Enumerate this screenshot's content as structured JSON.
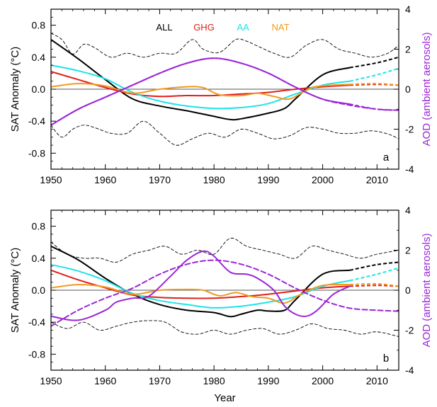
{
  "chart_data": [
    {
      "type": "line",
      "panel_label": "a",
      "x_ticks": [
        1950,
        1960,
        1970,
        1980,
        1990,
        2000,
        2010
      ],
      "xlim": [
        1950,
        2014
      ],
      "ylim": [
        -1.0,
        1.0
      ],
      "y_ticks": [
        -0.8,
        -0.4,
        0.0,
        0.4,
        0.8
      ],
      "y_tick_labels": [
        "-0.8",
        "-0.4",
        "0.0",
        "0.4",
        "0.8"
      ],
      "ylabel": "SAT Anomaly (°C)",
      "y2lim": [
        -4,
        4
      ],
      "y2_ticks": [
        -4,
        -2,
        0,
        2,
        4
      ],
      "y2label": "AOD (ambient aerosols)",
      "legend": [
        "ALL",
        "GHG",
        "AA",
        "NAT"
      ],
      "legend_position": "top-center",
      "zero_line": true,
      "series": [
        {
          "name": "ALL",
          "color": "#000000",
          "x": [
            1950,
            1955,
            1960,
            1965,
            1970,
            1975,
            1980,
            1983,
            1985,
            1990,
            1993,
            1995,
            2000,
            2005
          ],
          "y": [
            0.62,
            0.38,
            0.12,
            -0.12,
            -0.21,
            -0.27,
            -0.34,
            -0.38,
            -0.37,
            -0.3,
            -0.24,
            -0.12,
            0.18,
            0.27
          ],
          "x_ext": [
            2005,
            2010,
            2014
          ],
          "y_ext": [
            0.27,
            0.33,
            0.4
          ]
        },
        {
          "name": "GHG",
          "color": "#e0201a",
          "x": [
            1950,
            1955,
            1960,
            1965,
            1970,
            1975,
            1980,
            1985,
            1990,
            1995,
            2000,
            2005
          ],
          "y": [
            0.22,
            0.12,
            0.02,
            -0.06,
            -0.09,
            -0.08,
            -0.08,
            -0.06,
            -0.04,
            0.0,
            0.03,
            0.05
          ],
          "x_ext": [
            2005,
            2010,
            2014
          ],
          "y_ext": [
            0.05,
            0.06,
            0.05
          ]
        },
        {
          "name": "AA",
          "color": "#1ee3e8",
          "x": [
            1950,
            1955,
            1960,
            1965,
            1970,
            1975,
            1980,
            1985,
            1990,
            1995,
            2000,
            2005
          ],
          "y": [
            0.3,
            0.23,
            0.13,
            -0.04,
            -0.15,
            -0.21,
            -0.24,
            -0.23,
            -0.18,
            -0.06,
            0.05,
            0.1
          ],
          "x_ext": [
            2005,
            2010,
            2014
          ],
          "y_ext": [
            0.1,
            0.18,
            0.26
          ]
        },
        {
          "name": "NAT",
          "color": "#f09a20",
          "x": [
            1950,
            1955,
            1960,
            1965,
            1970,
            1975,
            1978,
            1981,
            1985,
            1988,
            1991,
            1994,
            1998,
            2002,
            2005
          ],
          "y": [
            0.03,
            0.07,
            0.04,
            -0.05,
            0.0,
            0.03,
            0.02,
            -0.07,
            -0.08,
            -0.05,
            -0.09,
            -0.12,
            0.02,
            0.05,
            0.06
          ],
          "x_ext": [
            2005,
            2010,
            2014
          ],
          "y_ext": [
            0.06,
            0.07,
            0.05
          ]
        },
        {
          "name": "AOD",
          "color": "#9b27d6",
          "axis": "y2",
          "x": [
            1950,
            1955,
            1960,
            1965,
            1970,
            1975,
            1980,
            1985,
            1990,
            1995,
            2000,
            2005
          ],
          "y": [
            -1.8,
            -1.0,
            -0.4,
            0.2,
            0.8,
            1.3,
            1.55,
            1.3,
            0.8,
            0.1,
            -0.5,
            -0.75
          ],
          "x_ext": [
            2005,
            2010,
            2014
          ],
          "y_ext": [
            -0.75,
            -1.0,
            -1.05
          ]
        },
        {
          "name": "AOD (dashed)",
          "color": "#9b27d6",
          "axis": "y2",
          "dashed": true,
          "x": [
            1950,
            1955,
            1960,
            1965,
            1970,
            1975,
            1980,
            1985,
            1990,
            1995,
            2000,
            2005,
            2010,
            2014
          ],
          "y": [
            -1.8,
            -1.0,
            -0.4,
            0.2,
            0.8,
            1.3,
            1.55,
            1.3,
            0.8,
            0.1,
            -0.5,
            -0.8,
            -1.0,
            -1.05
          ]
        },
        {
          "name": "Upper bound",
          "color": "#000000",
          "dashed": true,
          "thin": true,
          "x": [
            1950,
            1952,
            1954,
            1956,
            1958,
            1961,
            1964,
            1967,
            1970,
            1973,
            1976,
            1978,
            1981,
            1984,
            1986,
            1988,
            1991,
            1994,
            1997,
            2000,
            2003,
            2006,
            2009,
            2012,
            2014
          ],
          "y": [
            0.7,
            0.62,
            0.44,
            0.56,
            0.52,
            0.4,
            0.45,
            0.4,
            0.45,
            0.45,
            0.62,
            0.5,
            0.46,
            0.62,
            0.6,
            0.54,
            0.45,
            0.4,
            0.55,
            0.62,
            0.5,
            0.45,
            0.4,
            0.45,
            0.55
          ]
        },
        {
          "name": "Lower bound",
          "color": "#000000",
          "dashed": true,
          "thin": true,
          "x": [
            1950,
            1952,
            1954,
            1956,
            1958,
            1961,
            1964,
            1967,
            1970,
            1973,
            1976,
            1979,
            1982,
            1985,
            1988,
            1991,
            1994,
            1997,
            2000,
            2003,
            2006,
            2009,
            2012,
            2014
          ],
          "y": [
            -0.45,
            -0.6,
            -0.5,
            -0.45,
            -0.48,
            -0.55,
            -0.55,
            -0.4,
            -0.55,
            -0.7,
            -0.62,
            -0.55,
            -0.6,
            -0.5,
            -0.55,
            -0.62,
            -0.58,
            -0.48,
            -0.5,
            -0.55,
            -0.55,
            -0.52,
            -0.56,
            -0.62
          ]
        }
      ]
    },
    {
      "type": "line",
      "panel_label": "b",
      "x_ticks": [
        1950,
        1960,
        1970,
        1980,
        1990,
        2000,
        2010
      ],
      "xlim": [
        1950,
        2014
      ],
      "xlabel": "Year",
      "ylim": [
        -1.0,
        1.0
      ],
      "y_ticks": [
        -0.8,
        -0.4,
        0.0,
        0.4,
        0.8
      ],
      "y_tick_labels": [
        "-0.8",
        "-0.4",
        "0.0",
        "0.4",
        "0.8"
      ],
      "ylabel": "SAT Anomaly (°C)",
      "y2lim": [
        -4,
        4
      ],
      "y2_ticks": [
        -4,
        -2,
        0,
        2,
        4
      ],
      "y2label": "AOD (ambient aerosols)",
      "zero_line": true,
      "series": [
        {
          "name": "ALL",
          "color": "#000000",
          "x": [
            1950,
            1955,
            1960,
            1965,
            1970,
            1975,
            1980,
            1983,
            1985,
            1988,
            1990,
            1993,
            1995,
            2000,
            2005
          ],
          "y": [
            0.55,
            0.38,
            0.15,
            -0.05,
            -0.18,
            -0.25,
            -0.28,
            -0.33,
            -0.3,
            -0.25,
            -0.26,
            -0.25,
            -0.12,
            0.2,
            0.25
          ],
          "x_ext": [
            2005,
            2010,
            2014
          ],
          "y_ext": [
            0.25,
            0.32,
            0.35
          ]
        },
        {
          "name": "GHG",
          "color": "#e0201a",
          "x": [
            1950,
            1955,
            1960,
            1965,
            1970,
            1975,
            1980,
            1985,
            1990,
            1995,
            2000,
            2005
          ],
          "y": [
            0.25,
            0.13,
            0.03,
            -0.06,
            -0.09,
            -0.1,
            -0.1,
            -0.08,
            -0.05,
            -0.01,
            0.03,
            0.05
          ],
          "x_ext": [
            2005,
            2010,
            2014
          ],
          "y_ext": [
            0.05,
            0.06,
            0.05
          ]
        },
        {
          "name": "AA",
          "color": "#1ee3e8",
          "x": [
            1950,
            1955,
            1960,
            1965,
            1970,
            1975,
            1980,
            1985,
            1990,
            1995,
            2000,
            2005
          ],
          "y": [
            0.32,
            0.24,
            0.12,
            -0.04,
            -0.13,
            -0.18,
            -0.22,
            -0.2,
            -0.15,
            -0.08,
            0.05,
            0.12
          ],
          "x_ext": [
            2005,
            2010,
            2014
          ],
          "y_ext": [
            0.12,
            0.2,
            0.28
          ]
        },
        {
          "name": "NAT",
          "color": "#f09a20",
          "x": [
            1950,
            1955,
            1960,
            1965,
            1970,
            1975,
            1978,
            1981,
            1984,
            1987,
            1990,
            1993,
            1996,
            2000,
            2005
          ],
          "y": [
            0.03,
            0.07,
            0.04,
            -0.05,
            0.0,
            0.01,
            0.0,
            -0.07,
            -0.03,
            -0.08,
            -0.1,
            -0.16,
            -0.05,
            0.06,
            0.07
          ],
          "x_ext": [
            2005,
            2010,
            2014
          ],
          "y_ext": [
            0.07,
            0.08,
            0.05
          ]
        },
        {
          "name": "AOD",
          "color": "#9b27d6",
          "axis": "y2",
          "x": [
            1950,
            1955,
            1960,
            1962,
            1965,
            1968,
            1972,
            1975,
            1978,
            1980,
            1983,
            1986,
            1988,
            1991,
            1993,
            1995,
            1997,
            1999,
            2002,
            2005
          ],
          "y": [
            -1.3,
            -1.5,
            -1.0,
            -0.6,
            -0.4,
            -0.3,
            0.7,
            1.5,
            1.95,
            1.7,
            0.9,
            0.8,
            0.6,
            0.0,
            -0.8,
            -1.2,
            -1.3,
            -1.0,
            -0.2,
            0.2
          ]
        },
        {
          "name": "AOD (dashed)",
          "color": "#9b27d6",
          "axis": "y2",
          "dashed": true,
          "x": [
            1950,
            1955,
            1960,
            1965,
            1970,
            1975,
            1980,
            1985,
            1990,
            1995,
            2000,
            2005,
            2010,
            2014
          ],
          "y": [
            -1.8,
            -1.0,
            -0.4,
            0.1,
            0.8,
            1.3,
            1.5,
            1.3,
            0.8,
            0.1,
            -0.5,
            -0.9,
            -1.0,
            -1.05
          ]
        },
        {
          "name": "Upper bound",
          "color": "#000000",
          "dashed": true,
          "thin": true,
          "x": [
            1950,
            1953,
            1956,
            1959,
            1962,
            1965,
            1968,
            1971,
            1974,
            1977,
            1980,
            1983,
            1986,
            1989,
            1992,
            1995,
            1998,
            2001,
            2004,
            2007,
            2010,
            2014
          ],
          "y": [
            0.6,
            0.45,
            0.4,
            0.4,
            0.35,
            0.45,
            0.5,
            0.55,
            0.45,
            0.5,
            0.45,
            0.65,
            0.55,
            0.5,
            0.45,
            0.4,
            0.55,
            0.5,
            0.45,
            0.4,
            0.45,
            0.5
          ]
        },
        {
          "name": "Lower bound",
          "color": "#000000",
          "dashed": true,
          "thin": true,
          "x": [
            1950,
            1953,
            1956,
            1959,
            1962,
            1965,
            1968,
            1971,
            1974,
            1977,
            1980,
            1983,
            1986,
            1989,
            1992,
            1995,
            1998,
            2001,
            2004,
            2007,
            2010,
            2014
          ],
          "y": [
            -0.4,
            -0.48,
            -0.4,
            -0.5,
            -0.45,
            -0.4,
            -0.38,
            -0.4,
            -0.52,
            -0.55,
            -0.5,
            -0.55,
            -0.5,
            -0.48,
            -0.55,
            -0.5,
            -0.42,
            -0.48,
            -0.5,
            -0.55,
            -0.52,
            -0.58
          ]
        }
      ]
    }
  ]
}
